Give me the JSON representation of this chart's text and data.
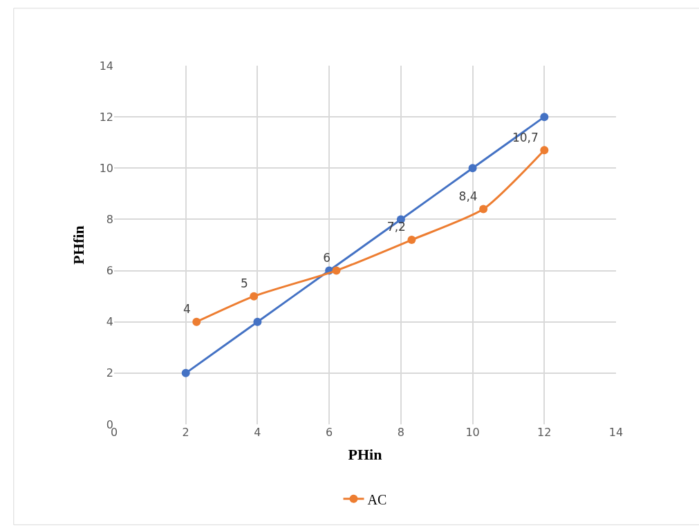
{
  "chart_data": {
    "type": "line",
    "xlabel": "PHin",
    "ylabel": "PHfin",
    "xlim": [
      0,
      14
    ],
    "xticks": [
      0,
      2,
      4,
      6,
      8,
      10,
      12,
      14
    ],
    "ylim": [
      0,
      14
    ],
    "yticks": [
      0,
      2,
      4,
      6,
      8,
      10,
      12,
      14
    ],
    "series": [
      {
        "color": "#4472c4",
        "x": [
          2,
          4,
          6,
          8,
          10,
          12
        ],
        "values": [
          2,
          4,
          6,
          8,
          10,
          12
        ]
      },
      {
        "name": "AC",
        "color": "#ed7d31",
        "x": [
          2.3,
          3.9,
          6.2,
          8.3,
          10.3,
          12
        ],
        "values": [
          4,
          5,
          6,
          7.2,
          8.4,
          10.7
        ],
        "value_labels": [
          "4",
          "5",
          "6",
          "7,2",
          "8,4",
          "10,7"
        ]
      }
    ],
    "grid": true,
    "legend": "bottom",
    "marker": "circle",
    "line_style": "solid"
  }
}
